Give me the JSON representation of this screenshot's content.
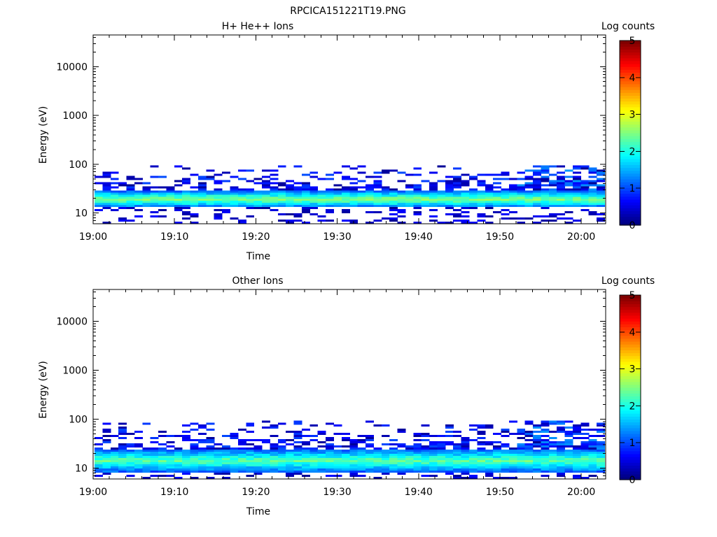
{
  "figure_title": "RPCICA151221T19.PNG",
  "chart_data": [
    {
      "type": "heatmap",
      "title": "H+ He++ Ions",
      "xlabel": "Time",
      "ylabel": "Energy (eV)",
      "x_range": [
        "19:00",
        "20:03"
      ],
      "y_range": [
        6,
        45000
      ],
      "y_scale": "log",
      "x_ticks": [
        "19:00",
        "19:10",
        "19:20",
        "19:30",
        "19:40",
        "19:50",
        "20:00"
      ],
      "y_ticks": [
        "10",
        "100",
        "1000",
        "10000"
      ],
      "colorbar": {
        "label": "Log counts",
        "range": [
          0,
          5
        ],
        "ticks": [
          "0",
          "1",
          "2",
          "3",
          "4",
          "5"
        ],
        "colormap": "jet"
      },
      "band": {
        "core_low_eV": 13,
        "core_high_eV": 28,
        "sparse_high_eV": 90,
        "peak_log_counts": 2.8
      },
      "grid": false
    },
    {
      "type": "heatmap",
      "title": "Other Ions",
      "xlabel": "Time",
      "ylabel": "Energy (eV)",
      "x_range": [
        "19:00",
        "20:03"
      ],
      "y_range": [
        6,
        45000
      ],
      "y_scale": "log",
      "x_ticks": [
        "19:00",
        "19:10",
        "19:20",
        "19:30",
        "19:40",
        "19:50",
        "20:00"
      ],
      "y_ticks": [
        "10",
        "100",
        "1000",
        "10000"
      ],
      "colorbar": {
        "label": "Log counts",
        "range": [
          0,
          5
        ],
        "ticks": [
          "0",
          "1",
          "2",
          "3",
          "4",
          "5"
        ],
        "colormap": "jet"
      },
      "band": {
        "core_low_eV": 8,
        "core_high_eV": 25,
        "sparse_high_eV": 90,
        "peak_log_counts": 2.6
      },
      "grid": false
    }
  ]
}
